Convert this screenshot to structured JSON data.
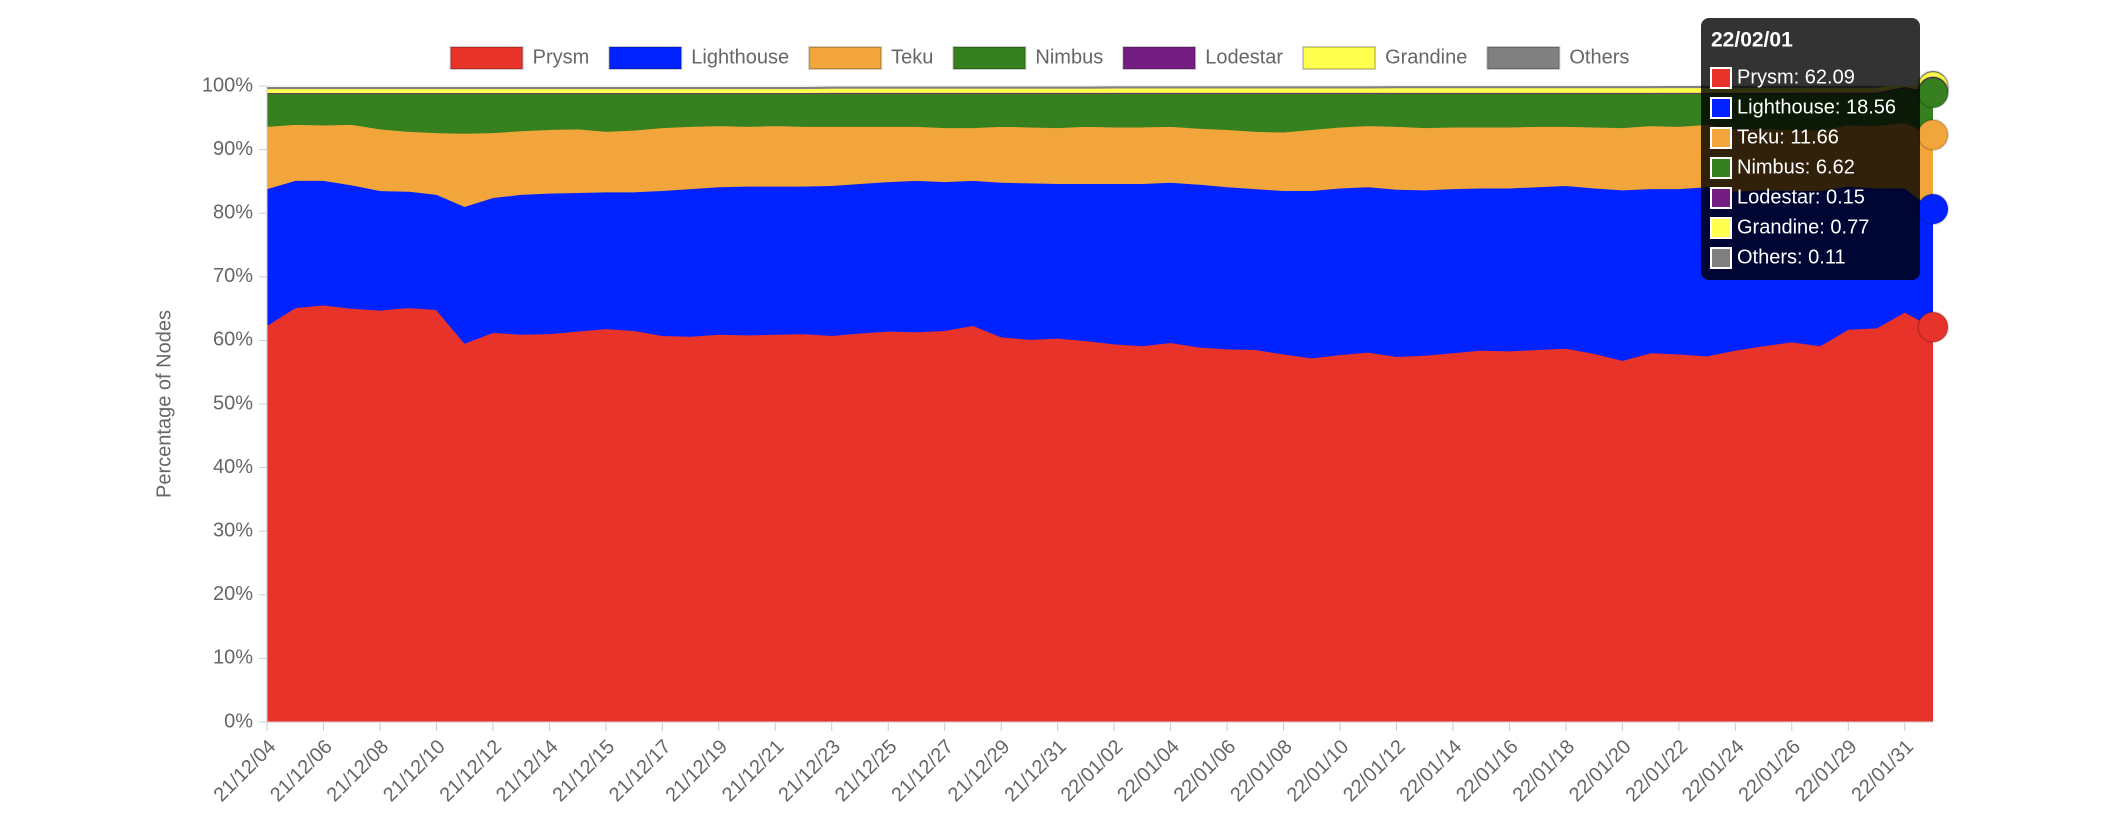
{
  "chart_data": {
    "type": "stacked_area",
    "y_label": "Percentage of Nodes",
    "legend": "top",
    "grid": true,
    "categories": [
      "21/12/04",
      null,
      "21/12/06",
      null,
      "21/12/08",
      null,
      "21/12/10",
      null,
      "21/12/12",
      null,
      "21/12/14",
      null,
      "21/12/15",
      null,
      "21/12/17",
      null,
      "21/12/19",
      null,
      "21/12/21",
      null,
      "21/12/23",
      null,
      "21/12/25",
      null,
      "21/12/27",
      null,
      "21/12/29",
      null,
      "21/12/31",
      null,
      "22/01/02",
      null,
      "22/01/04",
      null,
      "22/01/06",
      null,
      "22/01/08",
      null,
      "22/01/10",
      null,
      "22/01/12",
      null,
      "22/01/14",
      null,
      "22/01/16",
      null,
      "22/01/18",
      null,
      "22/01/20",
      null,
      "22/01/22",
      null,
      "22/01/24",
      null,
      "22/01/26",
      null,
      "22/01/29",
      null,
      "22/01/31",
      null
    ],
    "ylim": [
      0,
      100
    ],
    "yticks": [
      {
        "value": 0,
        "label": "0%"
      },
      {
        "value": 10,
        "label": "10%"
      },
      {
        "value": 20,
        "label": "20%"
      },
      {
        "value": 30,
        "label": "30%"
      },
      {
        "value": 40,
        "label": "40%"
      },
      {
        "value": 50,
        "label": "50%"
      },
      {
        "value": 60,
        "label": "60%"
      },
      {
        "value": 70,
        "label": "70%"
      },
      {
        "value": 80,
        "label": "80%"
      },
      {
        "value": 90,
        "label": "90%"
      },
      {
        "value": 100,
        "label": "100%"
      }
    ],
    "series": [
      {
        "name": "Prysm",
        "color": "#e8332a",
        "values": [
          62.4,
          65.2,
          65.6,
          65.1,
          64.8,
          65.2,
          64.9,
          59.6,
          61.3,
          61.0,
          61.1,
          61.5,
          61.9,
          61.6,
          60.8,
          60.7,
          61.0,
          60.9,
          61.0,
          61.1,
          60.8,
          61.2,
          61.5,
          61.4,
          61.6,
          62.4,
          60.6,
          60.2,
          60.4,
          60.0,
          59.5,
          59.2,
          59.7,
          59.0,
          58.7,
          58.6,
          57.9,
          57.3,
          57.8,
          58.2,
          57.5,
          57.7,
          58.1,
          58.5,
          58.4,
          58.6,
          58.8,
          58.0,
          56.9,
          58.1,
          57.9,
          57.6,
          58.5,
          59.2,
          59.8,
          59.2,
          61.8,
          62.0,
          64.5,
          62.09
        ]
      },
      {
        "name": "Lighthouse",
        "color": "#0022ff",
        "values": [
          21.5,
          20.0,
          19.6,
          19.4,
          18.8,
          18.3,
          18.1,
          21.5,
          21.2,
          22.0,
          22.1,
          21.8,
          21.5,
          21.8,
          22.8,
          23.2,
          23.2,
          23.4,
          23.3,
          23.2,
          23.6,
          23.5,
          23.5,
          23.8,
          23.4,
          22.8,
          24.3,
          24.6,
          24.3,
          24.7,
          25.2,
          25.5,
          25.2,
          25.6,
          25.5,
          25.3,
          25.7,
          26.3,
          26.2,
          26.0,
          26.3,
          26.0,
          25.8,
          25.5,
          25.6,
          25.6,
          25.6,
          26.0,
          26.8,
          25.8,
          26.0,
          26.6,
          25.0,
          24.5,
          23.8,
          24.4,
          22.5,
          22.0,
          19.5,
          18.56
        ]
      },
      {
        "name": "Teku",
        "color": "#f2a53a",
        "values": [
          9.8,
          8.8,
          8.7,
          9.5,
          9.7,
          9.4,
          9.7,
          11.5,
          10.2,
          10.0,
          10.0,
          10.0,
          9.5,
          9.7,
          9.9,
          9.8,
          9.6,
          9.4,
          9.5,
          9.4,
          9.3,
          9.0,
          8.7,
          8.5,
          8.5,
          8.3,
          8.8,
          8.8,
          8.8,
          9.0,
          8.9,
          8.9,
          8.8,
          8.8,
          9.0,
          9.0,
          9.2,
          9.6,
          9.6,
          9.6,
          9.9,
          9.8,
          9.7,
          9.6,
          9.6,
          9.5,
          9.3,
          9.6,
          9.8,
          9.9,
          9.8,
          9.8,
          9.8,
          9.6,
          9.6,
          9.5,
          9.6,
          9.8,
          10.3,
          11.66
        ]
      },
      {
        "name": "Nimbus",
        "color": "#36801f",
        "values": [
          5.2,
          4.9,
          5.0,
          4.9,
          5.6,
          6.0,
          6.2,
          6.3,
          6.2,
          5.9,
          5.7,
          5.6,
          6.0,
          5.8,
          5.4,
          5.2,
          5.1,
          5.2,
          5.1,
          5.2,
          5.2,
          5.2,
          5.2,
          5.2,
          5.4,
          5.4,
          5.2,
          5.3,
          5.4,
          5.2,
          5.3,
          5.3,
          5.2,
          5.5,
          5.7,
          6.0,
          6.1,
          5.7,
          5.3,
          5.1,
          5.2,
          5.4,
          5.3,
          5.3,
          5.3,
          5.2,
          5.2,
          5.3,
          5.4,
          5.1,
          5.2,
          4.9,
          5.6,
          5.6,
          5.7,
          5.8,
          5.0,
          5.1,
          5.5,
          6.62
        ]
      },
      {
        "name": "Lodestar",
        "color": "#741d82",
        "values": [
          0.12,
          0.12,
          0.12,
          0.12,
          0.12,
          0.12,
          0.12,
          0.12,
          0.12,
          0.12,
          0.12,
          0.12,
          0.12,
          0.12,
          0.12,
          0.12,
          0.12,
          0.12,
          0.12,
          0.12,
          0.13,
          0.13,
          0.13,
          0.13,
          0.13,
          0.13,
          0.13,
          0.13,
          0.13,
          0.13,
          0.13,
          0.13,
          0.13,
          0.13,
          0.13,
          0.13,
          0.13,
          0.13,
          0.13,
          0.13,
          0.14,
          0.14,
          0.14,
          0.14,
          0.14,
          0.14,
          0.14,
          0.14,
          0.14,
          0.14,
          0.14,
          0.14,
          0.14,
          0.14,
          0.14,
          0.15,
          0.15,
          0.15,
          0.15,
          0.15
        ]
      },
      {
        "name": "Grandine",
        "color": "#ffff4d",
        "values": [
          0.6,
          0.6,
          0.6,
          0.6,
          0.6,
          0.6,
          0.6,
          0.6,
          0.6,
          0.6,
          0.6,
          0.6,
          0.6,
          0.6,
          0.6,
          0.6,
          0.6,
          0.6,
          0.6,
          0.6,
          0.65,
          0.65,
          0.65,
          0.65,
          0.65,
          0.65,
          0.65,
          0.65,
          0.65,
          0.65,
          0.7,
          0.7,
          0.7,
          0.7,
          0.7,
          0.7,
          0.7,
          0.7,
          0.7,
          0.7,
          0.72,
          0.72,
          0.72,
          0.72,
          0.72,
          0.72,
          0.72,
          0.72,
          0.72,
          0.72,
          0.75,
          0.75,
          0.75,
          0.75,
          0.75,
          0.75,
          0.75,
          0.75,
          0.76,
          0.77
        ]
      },
      {
        "name": "Others",
        "color": "#808080",
        "values": [
          0.1,
          0.1,
          0.1,
          0.1,
          0.1,
          0.1,
          0.1,
          0.1,
          0.1,
          0.1,
          0.1,
          0.1,
          0.1,
          0.1,
          0.1,
          0.1,
          0.1,
          0.1,
          0.1,
          0.1,
          0.1,
          0.1,
          0.1,
          0.1,
          0.1,
          0.1,
          0.1,
          0.1,
          0.1,
          0.1,
          0.1,
          0.1,
          0.1,
          0.1,
          0.1,
          0.1,
          0.1,
          0.1,
          0.1,
          0.1,
          0.1,
          0.1,
          0.1,
          0.1,
          0.1,
          0.1,
          0.1,
          0.1,
          0.1,
          0.1,
          0.11,
          0.11,
          0.11,
          0.11,
          0.11,
          0.11,
          0.11,
          0.11,
          0.11,
          0.11
        ]
      }
    ],
    "tooltip": {
      "title": "22/02/01",
      "items": [
        "Prysm: 62.09",
        "Lighthouse: 18.56",
        "Teku: 11.66",
        "Nimbus: 6.62",
        "Lodestar: 0.15",
        "Grandine: 0.77",
        "Others: 0.11"
      ]
    }
  }
}
